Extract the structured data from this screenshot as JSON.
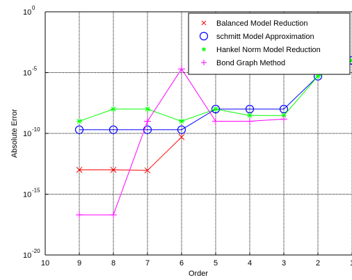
{
  "chart_data": {
    "type": "line",
    "title": "",
    "xlabel": "Order",
    "ylabel": "Absolute Error",
    "x_ticks": [
      "10",
      "9",
      "8",
      "7",
      "6",
      "5",
      "4",
      "3",
      "2",
      "1"
    ],
    "x_reversed": true,
    "xlim": [
      10,
      1
    ],
    "y_scale": "log",
    "ylim": [
      1e-20,
      1
    ],
    "y_tick_exponents": [
      "0",
      "-5",
      "-10",
      "-15",
      "-20"
    ],
    "y_tick_base": "10",
    "grid": true,
    "legend_position": "top-right",
    "series": [
      {
        "name": "Balanced Model Reduction",
        "color": "#ff0000",
        "marker": "x",
        "x": [
          9,
          8,
          7,
          6
        ],
        "y": [
          1e-13,
          1e-13,
          9e-14,
          5e-11
        ]
      },
      {
        "name": "schmitt Model Approximation",
        "color": "#0000ff",
        "marker": "circle",
        "x": [
          9,
          8,
          7,
          6,
          5,
          4,
          3,
          2,
          1
        ],
        "y": [
          2e-10,
          2e-10,
          2e-10,
          2e-10,
          1e-08,
          1e-08,
          1e-08,
          5e-06,
          0.0001
        ]
      },
      {
        "name": "Hankel Norm Model Reduction",
        "color": "#00ff00",
        "marker": "asterisk",
        "x": [
          9,
          8,
          7,
          6,
          5,
          4,
          3,
          2,
          1
        ],
        "y": [
          1e-09,
          1e-08,
          1e-08,
          1e-09,
          1e-08,
          3e-09,
          3e-09,
          5e-06,
          0.0001
        ]
      },
      {
        "name": "Bond Graph Method",
        "color": "#ff00ff",
        "marker": "plus",
        "x": [
          9,
          8,
          7,
          6,
          5,
          4,
          3
        ],
        "y": [
          2e-17,
          2e-17,
          1e-09,
          2e-05,
          1e-09,
          1e-09,
          1.5e-09
        ]
      }
    ]
  }
}
